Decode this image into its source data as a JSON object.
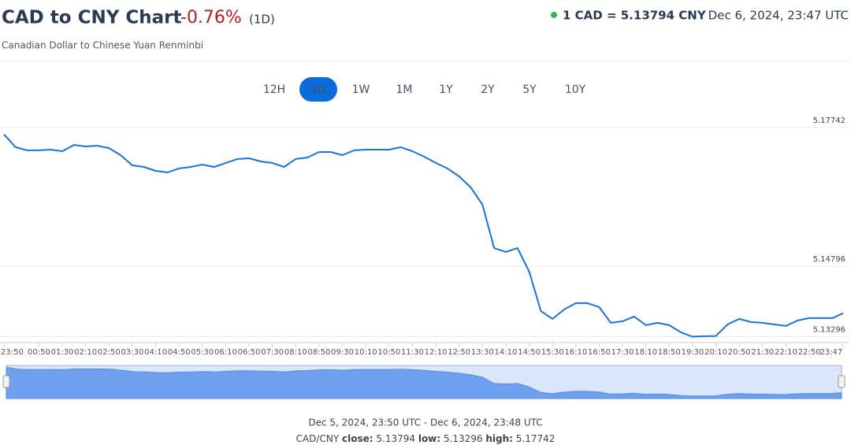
{
  "header": {
    "title": "CAD to CNY Chart",
    "change": "-0.76%",
    "period": "(1D)",
    "subtitle": "Canadian Dollar to Chinese Yuan Renminbi",
    "rate": "1 CAD = 5.13794 CNY",
    "timestamp": "Dec 6, 2024, 23:47 UTC"
  },
  "ranges": [
    "12H",
    "1D",
    "1W",
    "1M",
    "1Y",
    "2Y",
    "5Y",
    "10Y"
  ],
  "chart_data": {
    "type": "line",
    "color": "#1a73d9",
    "x": [
      "23:50",
      "00:10",
      "00:30",
      "00:50",
      "01:10",
      "01:30",
      "01:50",
      "02:10",
      "02:30",
      "02:50",
      "03:10",
      "03:30",
      "03:50",
      "04:10",
      "04:30",
      "04:50",
      "05:10",
      "05:30",
      "05:50",
      "06:10",
      "06:30",
      "06:50",
      "07:10",
      "07:30",
      "07:50",
      "08:10",
      "08:30",
      "08:50",
      "09:10",
      "09:30",
      "09:50",
      "10:10",
      "10:30",
      "10:50",
      "11:10",
      "11:30",
      "11:50",
      "12:10",
      "12:30",
      "12:50",
      "13:10",
      "13:30",
      "13:50",
      "14:10",
      "14:30",
      "14:50",
      "15:10",
      "15:30",
      "15:50",
      "16:10",
      "16:30",
      "16:50",
      "17:10",
      "17:30",
      "17:50",
      "18:10",
      "18:30",
      "18:50",
      "19:10",
      "19:30",
      "19:50",
      "20:10",
      "20:30",
      "20:50",
      "21:10",
      "21:30",
      "21:50",
      "22:10",
      "22:30",
      "22:50",
      "23:10",
      "23:30",
      "23:48"
    ],
    "values": [
      5.176,
      5.17324,
      5.17257,
      5.17257,
      5.17273,
      5.1724,
      5.17374,
      5.1734,
      5.17357,
      5.17307,
      5.17156,
      5.16939,
      5.16905,
      5.16821,
      5.16788,
      5.16872,
      5.16905,
      5.16955,
      5.16905,
      5.16989,
      5.17073,
      5.17089,
      5.17022,
      5.16989,
      5.16905,
      5.17073,
      5.17106,
      5.17223,
      5.17223,
      5.17156,
      5.17257,
      5.17273,
      5.17273,
      5.17273,
      5.17324,
      5.1724,
      5.17123,
      5.16989,
      5.16872,
      5.16704,
      5.1647,
      5.16102,
      5.15181,
      5.15097,
      5.15181,
      5.14679,
      5.13842,
      5.13674,
      5.13875,
      5.14009,
      5.14009,
      5.13926,
      5.13591,
      5.13624,
      5.13725,
      5.13541,
      5.13591,
      5.13541,
      5.1339,
      5.13296,
      5.13306,
      5.1331,
      5.13557,
      5.13674,
      5.13607,
      5.13591,
      5.13557,
      5.13524,
      5.13641,
      5.13691,
      5.13691,
      5.13691,
      5.13794
    ],
    "ylim": [
      5.1317,
      5.1811
    ],
    "yticks": [
      5.17742,
      5.14796,
      5.13296
    ],
    "xticks": [
      "23:50",
      "00:50",
      "01:30",
      "02:10",
      "02:50",
      "03:30",
      "04:10",
      "04:50",
      "05:30",
      "06:10",
      "06:50",
      "07:30",
      "08:10",
      "08:50",
      "09:30",
      "10:10",
      "10:50",
      "11:30",
      "12:10",
      "12:50",
      "13:30",
      "14:10",
      "14:50",
      "15:30",
      "16:10",
      "16:50",
      "17:30",
      "18:10",
      "18:50",
      "19:30",
      "20:10",
      "20:50",
      "21:30",
      "22:10",
      "22:50",
      "23:47"
    ],
    "grid": true
  },
  "footer": {
    "range": "Dec 5, 2024, 23:50 UTC - Dec 6, 2024, 23:48 UTC",
    "pair": "CAD/CNY",
    "close_label": "close:",
    "close": 5.13794,
    "low_label": "low:",
    "low": 5.13296,
    "high_label": "high:",
    "high": 5.17742
  }
}
